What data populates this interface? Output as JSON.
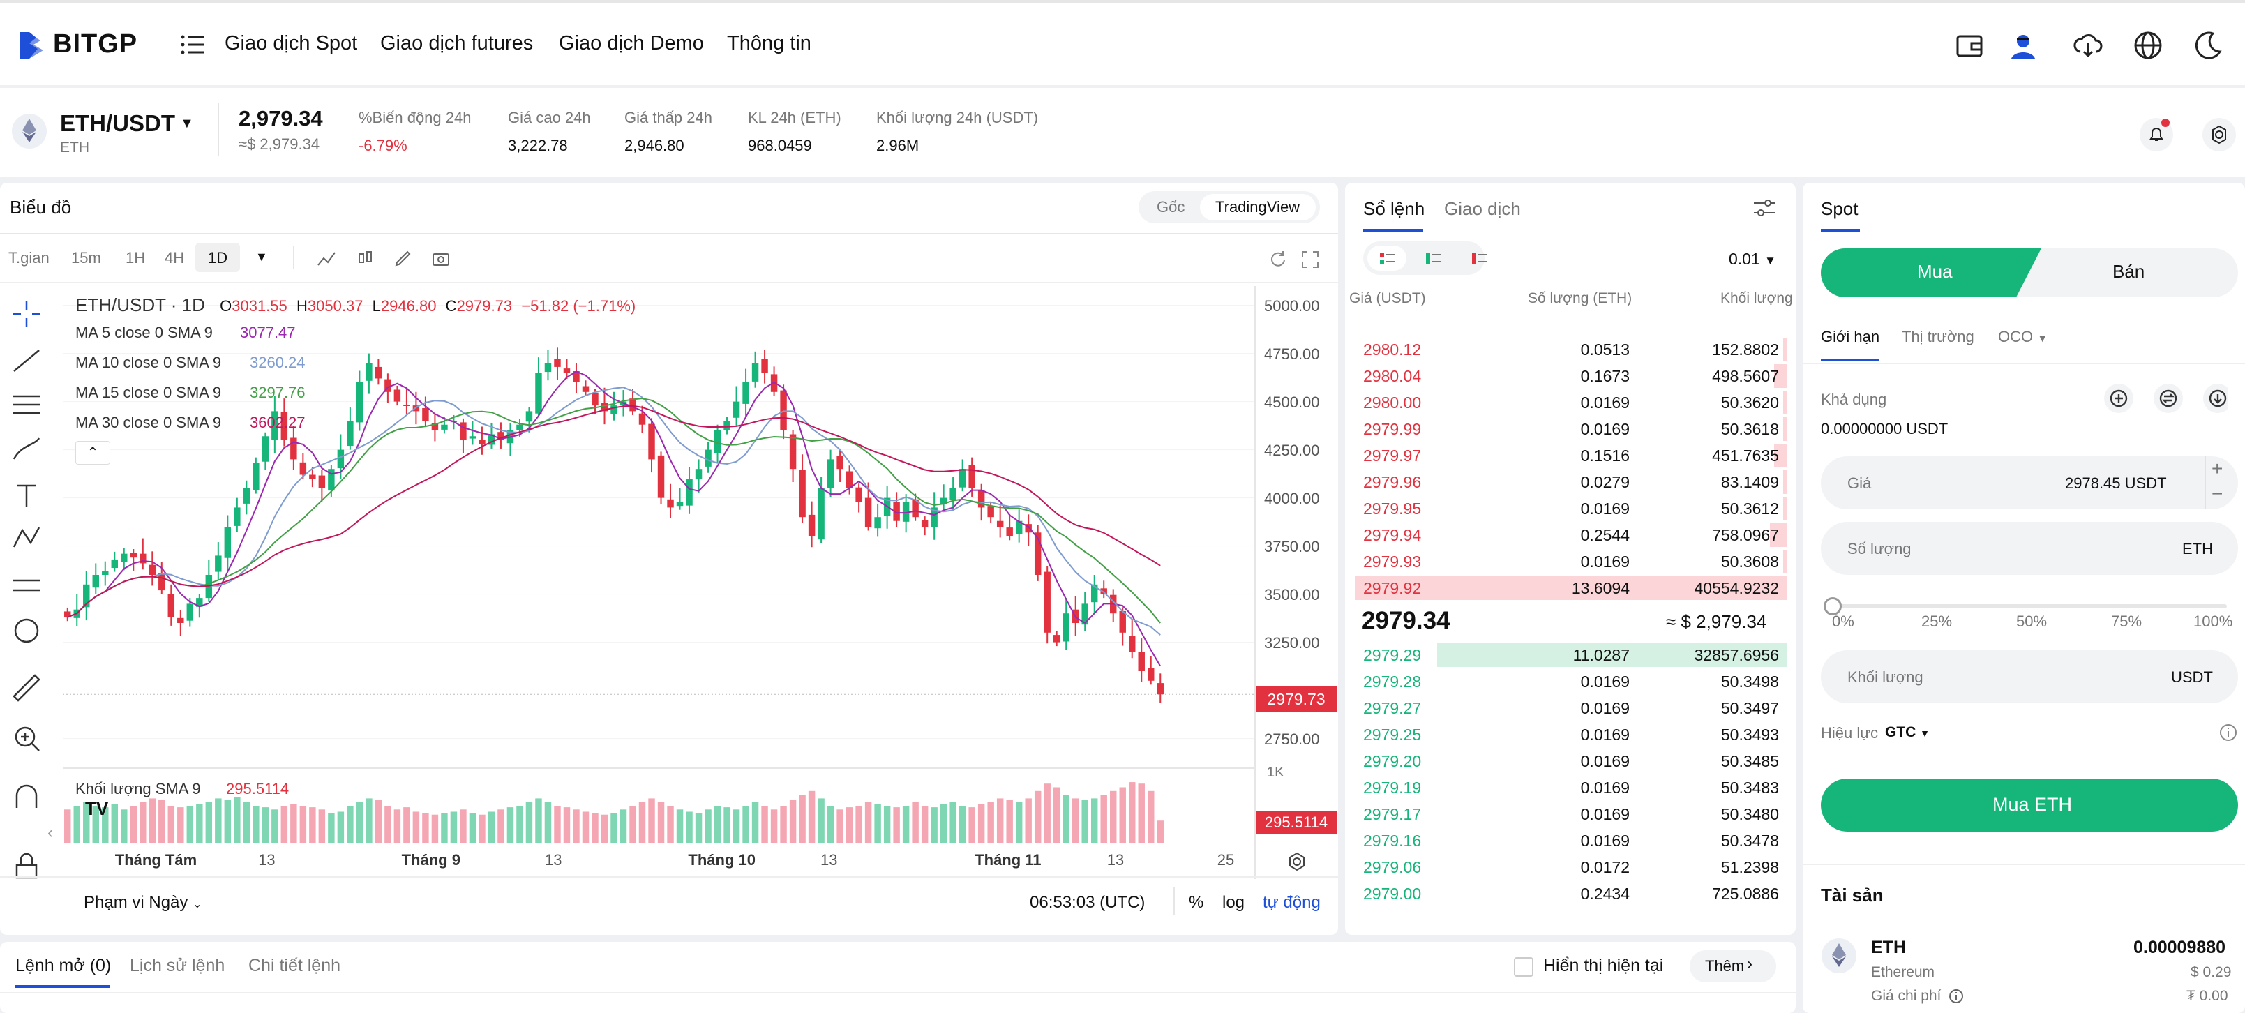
{
  "brand": {
    "name": "BITGP",
    "accent": "#1e4fd8",
    "green": "#16b57a",
    "red": "#e2323f"
  },
  "nav": {
    "items": [
      "Giao dịch Spot",
      "Giao dịch futures",
      "Giao dịch Demo",
      "Thông tin"
    ]
  },
  "ticker": {
    "pair": "ETH/USDT",
    "coin": "ETH",
    "price": "2,979.34",
    "price_usd": "≈$ 2,979.34",
    "stats": [
      {
        "label": "%Biến động 24h",
        "value": "-6.79%"
      },
      {
        "label": "Giá cao 24h",
        "value": "3,222.78"
      },
      {
        "label": "Giá thấp 24h",
        "value": "2,946.80"
      },
      {
        "label": "KL 24h (ETH)",
        "value": "968.0459"
      },
      {
        "label": "Khối lượng 24h (USDT)",
        "value": "2.96M"
      }
    ]
  },
  "chart": {
    "title": "Biểu đồ",
    "view_tabs": [
      "Gốc",
      "TradingView"
    ],
    "intervals": [
      "T.gian",
      "15m",
      "1H",
      "4H",
      "1D"
    ],
    "legend": {
      "symbol": "ETH/USDT · 1D",
      "o_label": "O",
      "o": "3031.55",
      "h_label": "H",
      "h": "3050.37",
      "l_label": "L",
      "l": "2946.80",
      "c_label": "C",
      "c": "2979.73",
      "change": "−51.82 (−1.71%)"
    },
    "mas": [
      {
        "label": "MA 5 close 0 SMA 9",
        "value": "3077.47",
        "color": "#9c27b0"
      },
      {
        "label": "MA 10 close 0 SMA 9",
        "value": "3260.24",
        "color": "#7e9ccf"
      },
      {
        "label": "MA 15 close 0 SMA 9",
        "value": "3297.76",
        "color": "#43a047"
      },
      {
        "label": "MA 30 close 0 SMA 9",
        "value": "3602.27",
        "color": "#c2185b"
      }
    ],
    "volume_label": "Khối lượng SMA 9",
    "volume_value": "295.5114",
    "volume_badge": "295.5114",
    "volume_axis": "1K",
    "price_badge": "2979.73",
    "footer": {
      "range": "Phạm vi Ngày",
      "time": "06:53:03 (UTC)",
      "pct": "%",
      "log": "log",
      "auto": "tự động"
    }
  },
  "chart_data": {
    "type": "candlestick",
    "title": "ETH/USDT · 1D",
    "yticks": [
      5000,
      4750,
      4500,
      4250,
      4000,
      3750,
      3500,
      3250,
      2750
    ],
    "ylim": [
      2600,
      5100
    ],
    "ytick_labels": [
      "5000.00",
      "4750.00",
      "4500.00",
      "4250.00",
      "4000.00",
      "3750.00",
      "3500.00",
      "3250.00",
      "2750.00"
    ],
    "xticks": [
      "Tháng Tám",
      "13",
      "Tháng 9",
      "13",
      "Tháng 10",
      "13",
      "Tháng 11",
      "13",
      "25"
    ],
    "close": [
      3380,
      3420,
      3550,
      3600,
      3620,
      3680,
      3710,
      3690,
      3660,
      3600,
      3520,
      3380,
      3350,
      3450,
      3480,
      3600,
      3700,
      3850,
      3950,
      4050,
      4180,
      4320,
      4450,
      4300,
      4200,
      4120,
      4100,
      4050,
      4150,
      4250,
      4400,
      4600,
      4700,
      4620,
      4550,
      4500,
      4480,
      4450,
      4400,
      4350,
      4380,
      4400,
      4300,
      4320,
      4280,
      4330,
      4300,
      4350,
      4380,
      4450,
      4650,
      4700,
      4680,
      4650,
      4600,
      4550,
      4480,
      4450,
      4480,
      4500,
      4450,
      4380,
      4200,
      4000,
      3950,
      3980,
      4100,
      4150,
      4250,
      4350,
      4400,
      4500,
      4600,
      4700,
      4650,
      4550,
      4350,
      4150,
      3900,
      3800,
      4050,
      4200,
      4150,
      4050,
      3980,
      3850,
      3900,
      4000,
      3880,
      3980,
      3900,
      3850,
      3950,
      4000,
      4050,
      4150,
      4050,
      3950,
      3900,
      3850,
      3800,
      3880,
      3820,
      3600,
      3300,
      3250,
      3400,
      3350,
      3450,
      3550,
      3500,
      3400,
      3300,
      3200,
      3100,
      3050,
      2979.73
    ],
    "volume": [
      0.45,
      0.5,
      0.55,
      0.5,
      0.48,
      0.52,
      0.45,
      0.5,
      0.55,
      0.6,
      0.58,
      0.5,
      0.48,
      0.5,
      0.52,
      0.55,
      0.6,
      0.58,
      0.62,
      0.55,
      0.5,
      0.48,
      0.45,
      0.5,
      0.52,
      0.5,
      0.48,
      0.45,
      0.4,
      0.42,
      0.5,
      0.55,
      0.6,
      0.58,
      0.5,
      0.45,
      0.48,
      0.42,
      0.4,
      0.38,
      0.4,
      0.42,
      0.45,
      0.4,
      0.38,
      0.42,
      0.45,
      0.48,
      0.5,
      0.55,
      0.6,
      0.55,
      0.5,
      0.48,
      0.45,
      0.42,
      0.4,
      0.38,
      0.4,
      0.45,
      0.5,
      0.55,
      0.6,
      0.55,
      0.5,
      0.45,
      0.42,
      0.4,
      0.45,
      0.5,
      0.48,
      0.45,
      0.5,
      0.55,
      0.5,
      0.45,
      0.5,
      0.58,
      0.65,
      0.7,
      0.6,
      0.5,
      0.45,
      0.48,
      0.5,
      0.55,
      0.52,
      0.5,
      0.48,
      0.5,
      0.55,
      0.5,
      0.48,
      0.52,
      0.55,
      0.5,
      0.48,
      0.52,
      0.55,
      0.6,
      0.58,
      0.55,
      0.6,
      0.7,
      0.8,
      0.75,
      0.65,
      0.6,
      0.58,
      0.6,
      0.65,
      0.7,
      0.75,
      0.82,
      0.8,
      0.7,
      0.3
    ]
  },
  "orderbook": {
    "tabs": [
      "Sổ lệnh",
      "Giao dịch"
    ],
    "step": "0.01",
    "headers": [
      "Giá (USDT)",
      "Số lượng (ETH)",
      "Khối lượng"
    ],
    "asks": [
      {
        "p": "2980.12",
        "q": "0.0513",
        "t": "152.8802",
        "d": 0.01
      },
      {
        "p": "2980.04",
        "q": "0.1673",
        "t": "498.5607",
        "d": 0.03
      },
      {
        "p": "2980.00",
        "q": "0.0169",
        "t": "50.3620",
        "d": 0.01
      },
      {
        "p": "2979.99",
        "q": "0.0169",
        "t": "50.3618",
        "d": 0.01
      },
      {
        "p": "2979.97",
        "q": "0.1516",
        "t": "451.7635",
        "d": 0.03
      },
      {
        "p": "2979.96",
        "q": "0.0279",
        "t": "83.1409",
        "d": 0.01
      },
      {
        "p": "2979.95",
        "q": "0.0169",
        "t": "50.3612",
        "d": 0.01
      },
      {
        "p": "2979.94",
        "q": "0.2544",
        "t": "758.0967",
        "d": 0.04
      },
      {
        "p": "2979.93",
        "q": "0.0169",
        "t": "50.3608",
        "d": 0.01
      },
      {
        "p": "2979.92",
        "q": "13.6094",
        "t": "40554.9232",
        "d": 1.0
      }
    ],
    "mid": "2979.34",
    "mid_usd": "≈ $ 2,979.34",
    "bids": [
      {
        "p": "2979.29",
        "q": "11.0287",
        "t": "32857.6956",
        "d": 0.81
      },
      {
        "p": "2979.28",
        "q": "0.0169",
        "t": "50.3498",
        "d": 0
      },
      {
        "p": "2979.27",
        "q": "0.0169",
        "t": "50.3497",
        "d": 0
      },
      {
        "p": "2979.25",
        "q": "0.0169",
        "t": "50.3493",
        "d": 0
      },
      {
        "p": "2979.20",
        "q": "0.0169",
        "t": "50.3485",
        "d": 0
      },
      {
        "p": "2979.19",
        "q": "0.0169",
        "t": "50.3483",
        "d": 0
      },
      {
        "p": "2979.17",
        "q": "0.0169",
        "t": "50.3480",
        "d": 0
      },
      {
        "p": "2979.16",
        "q": "0.0169",
        "t": "50.3478",
        "d": 0
      },
      {
        "p": "2979.06",
        "q": "0.0172",
        "t": "51.2398",
        "d": 0
      },
      {
        "p": "2979.00",
        "q": "0.2434",
        "t": "725.0886",
        "d": 0
      }
    ]
  },
  "trade": {
    "tab": "Spot",
    "buy": "Mua",
    "sell": "Bán",
    "order_types": [
      "Giới hạn",
      "Thị trường",
      "OCO"
    ],
    "available_label": "Khả dụng",
    "available": "0.00000000 USDT",
    "price_label": "Giá",
    "price_value": "2978.45 USDT",
    "qty_label": "Số lượng",
    "qty_unit": "ETH",
    "pcts": [
      "0%",
      "25%",
      "50%",
      "75%",
      "100%"
    ],
    "slider_value": 0,
    "total_label": "Khối lượng",
    "total_unit": "USDT",
    "tif_label": "Hiệu lực",
    "tif": "GTC",
    "submit": "Mua ETH",
    "assets_title": "Tài sản",
    "asset": {
      "coin": "ETH",
      "name": "Ethereum",
      "amount": "0.00009880",
      "usd": "$ 0.29",
      "cost_label": "Giá chi phí",
      "cost": "₮ 0.00"
    }
  },
  "orders": {
    "tabs": [
      "Lệnh mở (0)",
      "Lịch sử lệnh",
      "Chi tiết lệnh"
    ],
    "show_current": "Hiển thị hiện tại",
    "more": "Thêm"
  }
}
